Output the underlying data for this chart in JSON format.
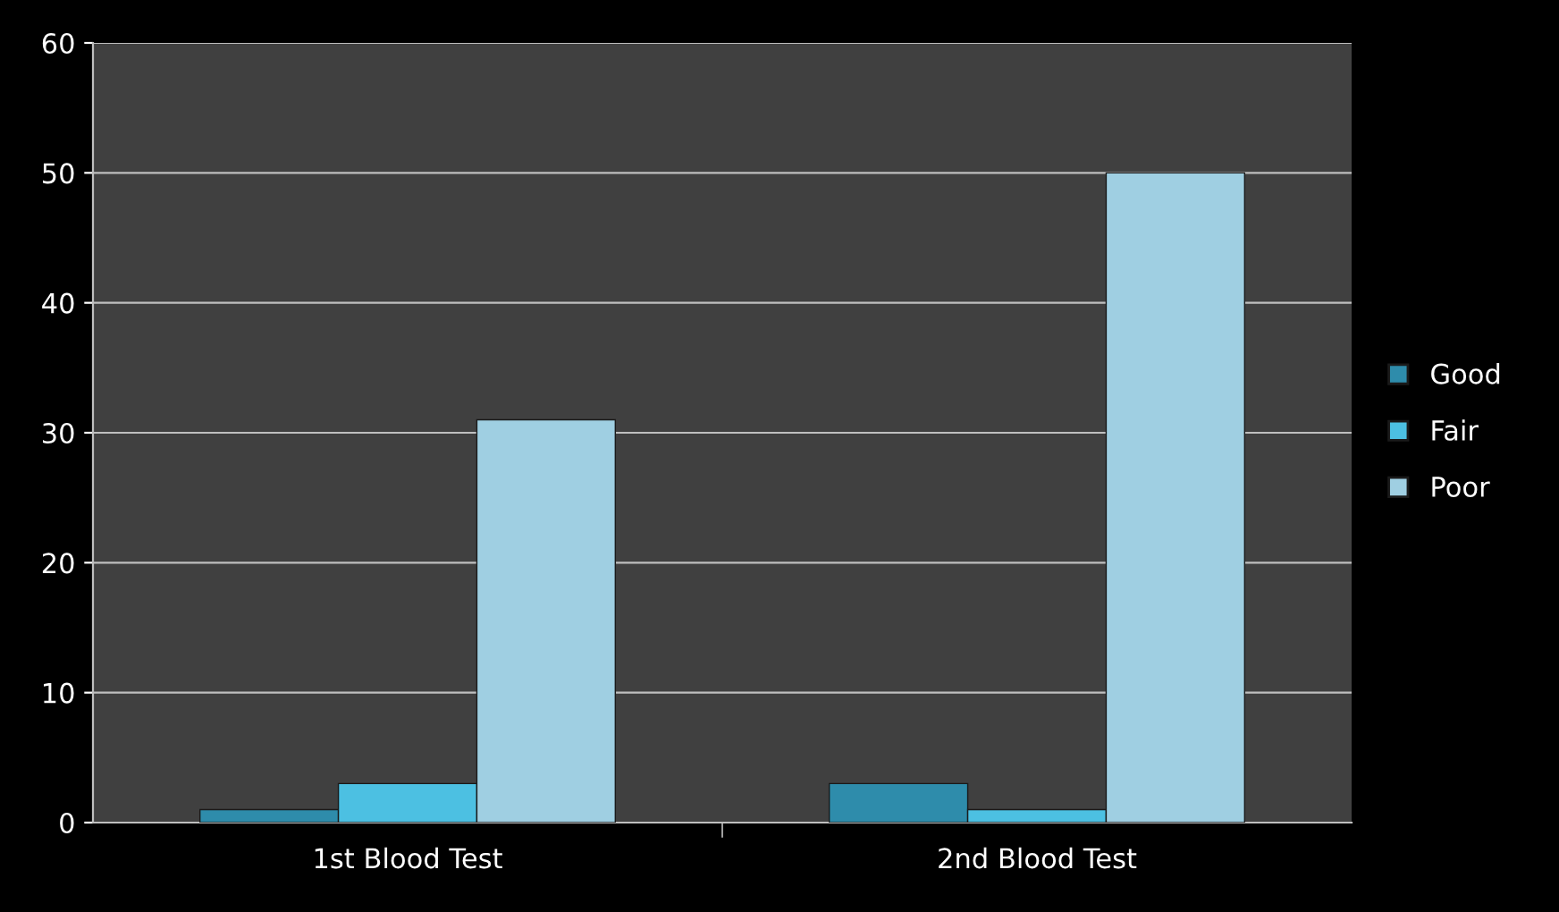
{
  "chart_data": {
    "type": "bar",
    "categories": [
      "1st Blood Test",
      "2nd Blood Test"
    ],
    "series": [
      {
        "name": "Good",
        "color": "#2e8cab",
        "values": [
          1,
          3
        ]
      },
      {
        "name": "Fair",
        "color": "#4cc0e2",
        "values": [
          3,
          1
        ]
      },
      {
        "name": "Poor",
        "color": "#9fcfe2",
        "values": [
          31,
          50
        ]
      }
    ],
    "ylim": [
      0,
      60
    ],
    "yticks": [
      0,
      10,
      20,
      30,
      40,
      50,
      60
    ],
    "grid": "y",
    "legend": "right"
  }
}
